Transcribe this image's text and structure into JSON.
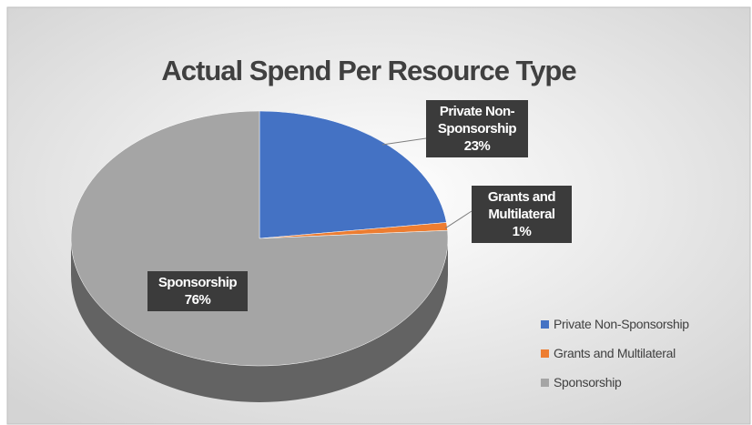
{
  "chart_data": {
    "type": "pie",
    "title": "Actual Spend Per Resource Type",
    "categories": [
      "Private Non-Sponsorship",
      "Grants and Multilateral",
      "Sponsorship"
    ],
    "values": [
      23,
      1,
      76
    ],
    "value_labels": [
      "23%",
      "1%",
      "76%"
    ],
    "colors": [
      "#4472c4",
      "#ed7d31",
      "#a5a5a5"
    ],
    "legend": "bottom-right"
  }
}
